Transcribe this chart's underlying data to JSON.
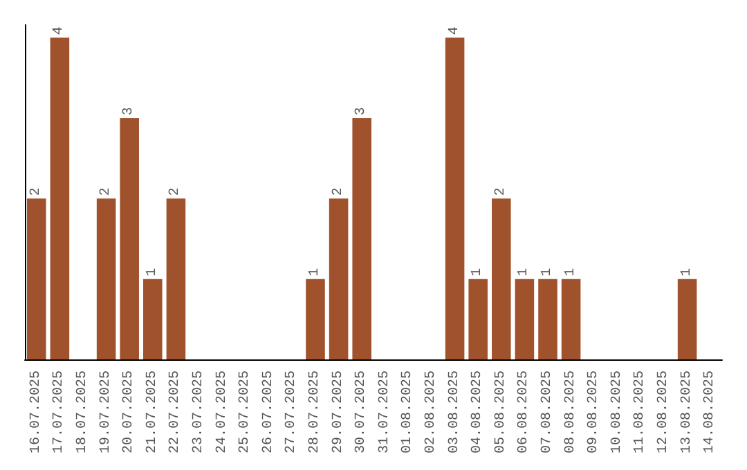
{
  "chart_data": {
    "type": "bar",
    "categories": [
      "16.07.2025",
      "17.07.2025",
      "18.07.2025",
      "19.07.2025",
      "20.07.2025",
      "21.07.2025",
      "22.07.2025",
      "23.07.2025",
      "24.07.2025",
      "25.07.2025",
      "26.07.2025",
      "27.07.2025",
      "28.07.2025",
      "29.07.2025",
      "30.07.2025",
      "31.07.2025",
      "01.08.2025",
      "02.08.2025",
      "03.08.2025",
      "04.08.2025",
      "05.08.2025",
      "06.08.2025",
      "07.08.2025",
      "08.08.2025",
      "09.08.2025",
      "10.08.2025",
      "11.08.2025",
      "12.08.2025",
      "13.08.2025",
      "14.08.2025"
    ],
    "values": [
      2,
      4,
      0,
      2,
      3,
      1,
      2,
      0,
      0,
      0,
      0,
      0,
      1,
      2,
      3,
      0,
      0,
      0,
      4,
      1,
      2,
      1,
      1,
      1,
      0,
      0,
      0,
      0,
      1,
      0
    ],
    "value_labels": [
      "2",
      "4",
      null,
      "2",
      "3",
      "1",
      "2",
      null,
      null,
      null,
      null,
      null,
      "1",
      "2",
      "3",
      null,
      null,
      null,
      "4",
      "1",
      "2",
      "1",
      "1",
      "1",
      null,
      null,
      null,
      null,
      "1",
      null
    ],
    "color": "#a0522d",
    "grid": false,
    "tick_labels": "x"
  }
}
